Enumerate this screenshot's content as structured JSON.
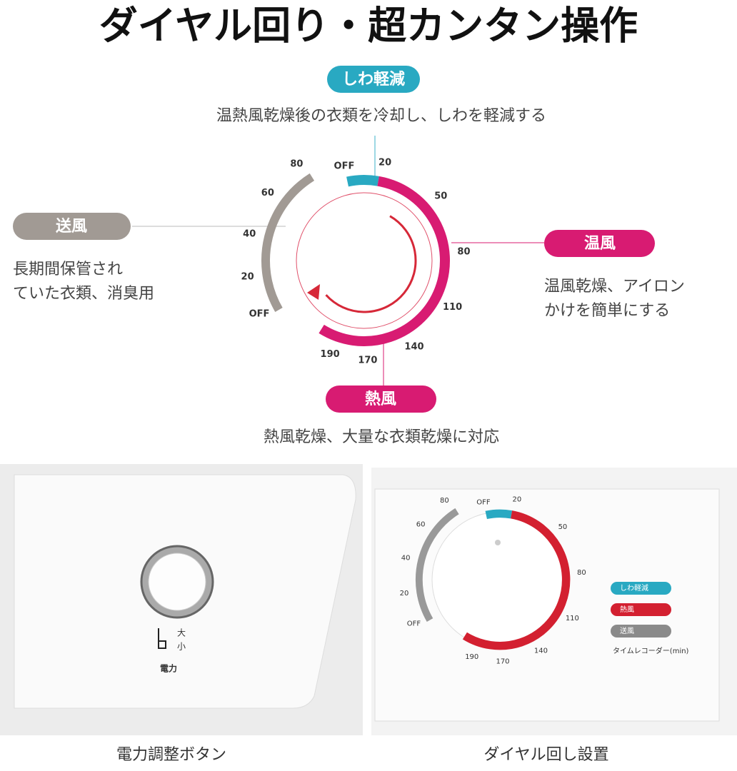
{
  "title": "ダイヤル回り・超カンタン操作",
  "modes": {
    "wrinkle": {
      "label": "しわ軽減",
      "desc": "温熱風乾燥後の衣類を冷却し、しわを軽減する"
    },
    "fan": {
      "label": "送風",
      "desc": [
        "長期間保管され",
        "ていた衣類、消臭用"
      ]
    },
    "warm": {
      "label": "温風",
      "desc": [
        "温風乾燥、アイロン",
        "かけを簡単にする"
      ]
    },
    "hot": {
      "label": "熱風",
      "desc": "熱風乾燥、大量な衣類乾燥に対応"
    }
  },
  "dial": {
    "right": [
      "OFF",
      "20",
      "50",
      "80",
      "110",
      "140",
      "170",
      "190"
    ],
    "left": [
      "OFF",
      "20",
      "40",
      "60",
      "80"
    ]
  },
  "photos": {
    "power": {
      "big": "大",
      "small": "小",
      "label": "電力",
      "caption": "電力調整ボタン"
    },
    "knob": {
      "right": [
        "OFF",
        "20",
        "50",
        "80",
        "110",
        "140",
        "170",
        "190"
      ],
      "left": [
        "OFF",
        "20",
        "40",
        "60",
        "80"
      ],
      "legend": [
        "しわ軽減",
        "熱風",
        "送風"
      ],
      "legend_title": "タイムレコーダー(min)",
      "caption": "ダイヤル回し設置"
    }
  }
}
